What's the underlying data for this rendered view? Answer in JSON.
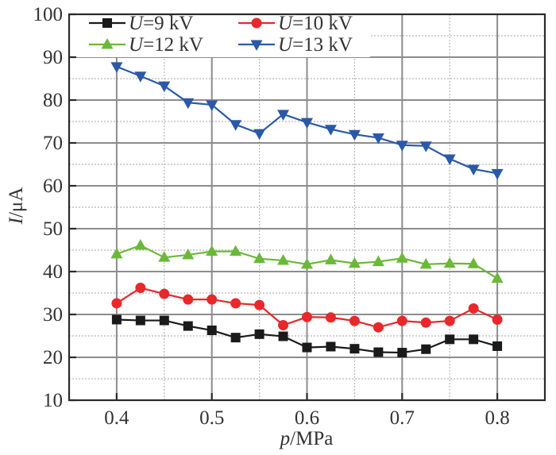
{
  "chart_data": {
    "type": "line",
    "title": "",
    "xlabel_italic": "p",
    "xlabel_unit": "/MPa",
    "ylabel_italic": "I",
    "ylabel_unit": "/μA",
    "xlim": [
      0.35,
      0.85
    ],
    "ylim": [
      10,
      100
    ],
    "xticks": [
      0.4,
      0.5,
      0.6,
      0.7,
      0.8
    ],
    "xtick_labels": [
      "0.4",
      "0.5",
      "0.6",
      "0.7",
      "0.8"
    ],
    "xminor": [
      0.45,
      0.55,
      0.65,
      0.75
    ],
    "yticks": [
      10,
      20,
      30,
      40,
      50,
      60,
      70,
      80,
      90,
      100
    ],
    "ytick_labels": [
      "10",
      "20",
      "30",
      "40",
      "50",
      "60",
      "70",
      "80",
      "90",
      "100"
    ],
    "yminor": [
      15,
      25,
      35,
      45,
      55,
      65,
      75,
      85,
      95
    ],
    "grid": true,
    "legend_position": "top-left",
    "x": [
      0.4,
      0.425,
      0.45,
      0.475,
      0.5,
      0.525,
      0.55,
      0.575,
      0.6,
      0.625,
      0.65,
      0.675,
      0.7,
      0.725,
      0.75,
      0.775,
      0.8
    ],
    "series": [
      {
        "name": "U=9 kV",
        "name_italic": "U",
        "name_rest": "=9 kV",
        "color": "#1a1a1a",
        "marker": "square",
        "values": [
          28.8,
          28.6,
          28.6,
          27.3,
          26.3,
          24.6,
          25.4,
          24.9,
          22.3,
          22.5,
          22.0,
          21.2,
          21.1,
          21.9,
          24.2,
          24.2,
          22.6
        ]
      },
      {
        "name": "U=10 kV",
        "name_italic": "U",
        "name_rest": "=10 kV",
        "color": "#e8282b",
        "marker": "circle",
        "values": [
          32.6,
          36.2,
          34.8,
          33.5,
          33.5,
          32.6,
          32.2,
          27.5,
          29.4,
          29.3,
          28.5,
          27.0,
          28.5,
          28.1,
          28.5,
          31.4,
          28.8
        ]
      },
      {
        "name": "U=12 kV",
        "name_italic": "U",
        "name_rest": "=12 kV",
        "color": "#6bb83a",
        "marker": "triangle-up",
        "values": [
          44.1,
          46.1,
          43.3,
          43.9,
          44.7,
          44.7,
          43.0,
          42.6,
          41.7,
          42.7,
          41.9,
          42.3,
          43.1,
          41.7,
          41.9,
          41.8,
          38.4
        ]
      },
      {
        "name": "U=13 kV",
        "name_italic": "U",
        "name_rest": "=13 kV",
        "color": "#2b59a8",
        "marker": "triangle-down",
        "values": [
          87.8,
          85.6,
          83.3,
          79.4,
          78.9,
          74.3,
          72.2,
          76.7,
          74.8,
          73.2,
          72.0,
          71.2,
          69.5,
          69.3,
          66.3,
          63.9,
          62.9
        ]
      }
    ]
  }
}
